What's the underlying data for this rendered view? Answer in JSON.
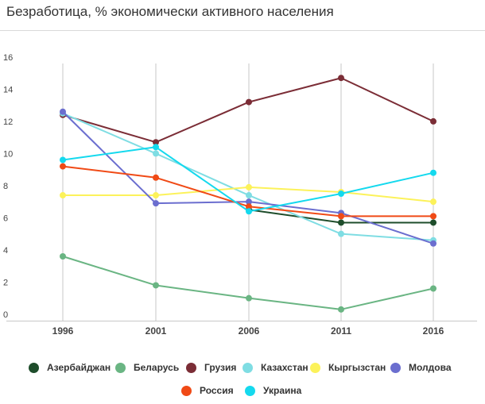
{
  "title": "Безработица, % экономически активного населения",
  "chart_data": {
    "type": "line",
    "x": [
      1996,
      2001,
      2006,
      2011,
      2016
    ],
    "ylim": [
      0,
      16
    ],
    "yticks": [
      0,
      2,
      4,
      6,
      8,
      10,
      12,
      14,
      16
    ],
    "grid": "vertical",
    "legend_position": "bottom",
    "series": [
      {
        "name": "Азербайджан",
        "color": "#1e4d2b",
        "values": [
          null,
          null,
          6.9,
          6.1,
          6.1
        ]
      },
      {
        "name": "Беларусь",
        "color": "#6ab583",
        "values": [
          4.0,
          2.2,
          1.4,
          0.7,
          2.0
        ]
      },
      {
        "name": "Грузия",
        "color": "#7b2d36",
        "values": [
          12.8,
          11.1,
          13.6,
          15.1,
          12.4
        ]
      },
      {
        "name": "Казахстан",
        "color": "#7fdde3",
        "values": [
          12.9,
          10.4,
          7.8,
          5.4,
          5.0
        ]
      },
      {
        "name": "Кыргызстан",
        "color": "#fcf25a",
        "values": [
          7.8,
          7.8,
          8.3,
          8.0,
          7.4
        ]
      },
      {
        "name": "Молдова",
        "color": "#6b6ecf",
        "values": [
          13.0,
          7.3,
          7.4,
          6.7,
          4.8
        ]
      },
      {
        "name": "Россия",
        "color": "#f04a16",
        "values": [
          9.6,
          8.9,
          7.1,
          6.5,
          6.5
        ]
      },
      {
        "name": "Украина",
        "color": "#14d9ee",
        "values": [
          10.0,
          10.8,
          6.8,
          7.9,
          9.2
        ]
      }
    ]
  }
}
